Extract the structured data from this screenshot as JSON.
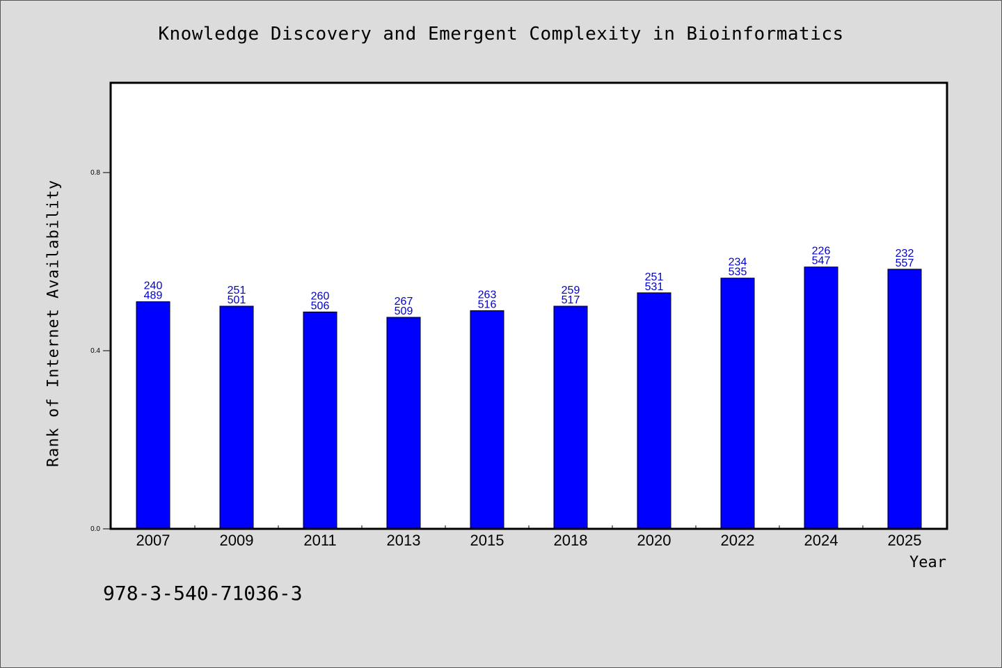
{
  "chart_data": {
    "type": "bar",
    "title": "Knowledge Discovery and Emergent Complexity in Bioinformatics",
    "xlabel": "Year",
    "ylabel": "Rank of Internet Availability",
    "categories": [
      "2007",
      "2009",
      "2011",
      "2013",
      "2015",
      "2018",
      "2020",
      "2022",
      "2024",
      "2025"
    ],
    "values": [
      0.51,
      0.5,
      0.487,
      0.475,
      0.49,
      0.5,
      0.53,
      0.563,
      0.588,
      0.583
    ],
    "labels_top": [
      "240",
      "251",
      "260",
      "267",
      "263",
      "259",
      "251",
      "234",
      "226",
      "232"
    ],
    "labels_bottom": [
      "489",
      "501",
      "506",
      "509",
      "516",
      "517",
      "531",
      "535",
      "547",
      "557"
    ],
    "ylim": [
      0,
      1.0
    ],
    "yticks": [
      0.0,
      0.4,
      0.8
    ],
    "ytick_labels": [
      "0.0",
      "0.4",
      "0.8"
    ],
    "grid": false,
    "colors": {
      "bar": "#0000ff",
      "data_label": "#0000cc",
      "background": "#dcdcdc",
      "plot_background": "#ffffff"
    }
  },
  "footer": {
    "isbn": "978-3-540-71036-3"
  }
}
